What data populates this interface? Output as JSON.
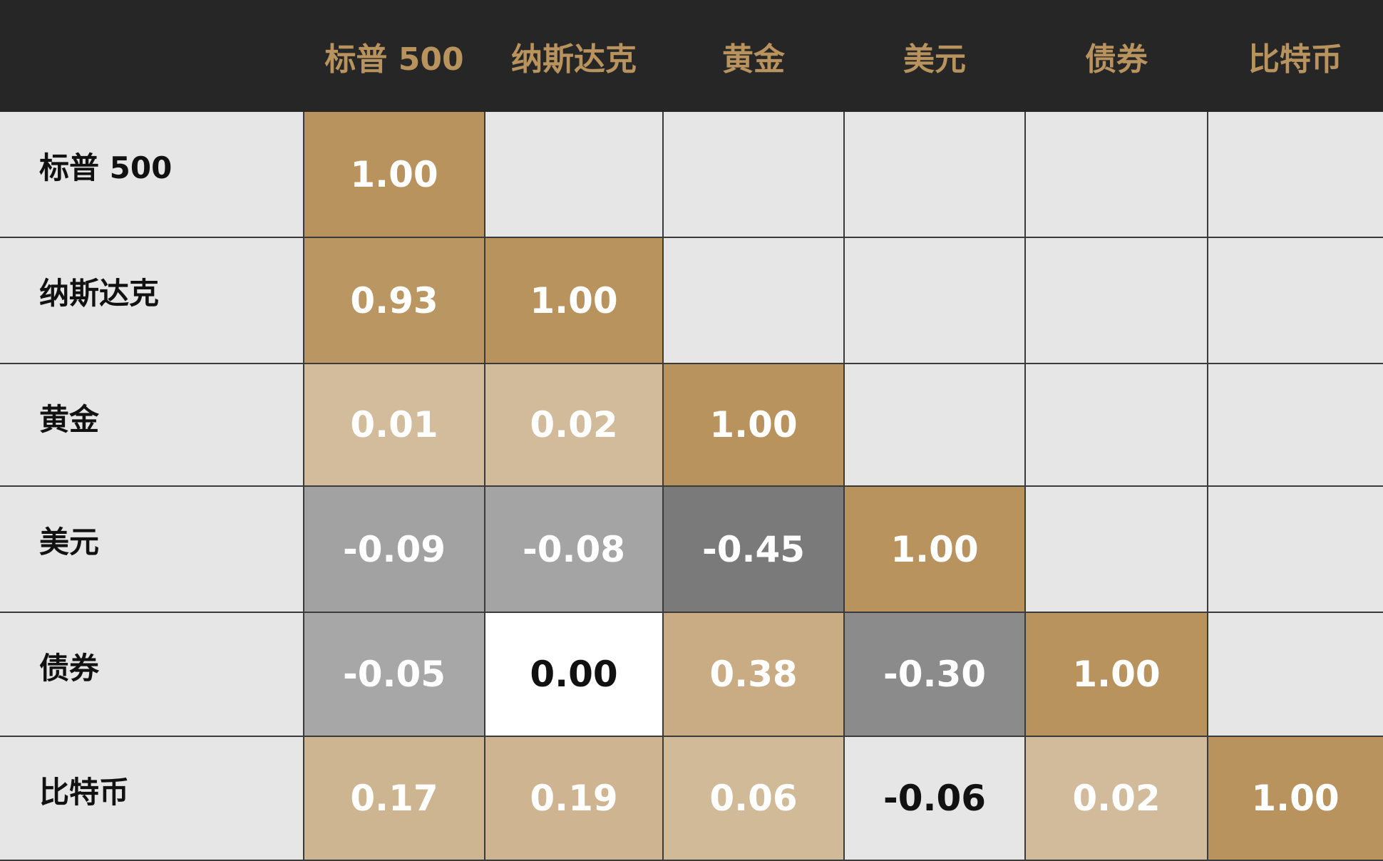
{
  "chart_data": {
    "type": "heatmap",
    "variables": [
      "标普 500",
      "纳斯达克",
      "黄金",
      "美元",
      "债券",
      "比特币"
    ],
    "matrix": [
      [
        "1.00",
        null,
        null,
        null,
        null,
        null
      ],
      [
        "0.93",
        "1.00",
        null,
        null,
        null,
        null
      ],
      [
        "0.01",
        "0.02",
        "1.00",
        null,
        null,
        null
      ],
      [
        "-0.09",
        "-0.08",
        "-0.45",
        "1.00",
        null,
        null
      ],
      [
        "-0.05",
        "0.00",
        "0.38",
        "-0.30",
        "1.00",
        null
      ],
      [
        "0.17",
        "0.19",
        "0.06",
        "-0.06",
        "0.02",
        "1.00"
      ]
    ],
    "lower_triangle_only": true,
    "colors": {
      "header_bg": "#262626",
      "header_text": "#b8935e",
      "background": "#e6e6e6",
      "positive_max": "#b8935e",
      "zero": "#ffffff",
      "negative_max": "#7a7a7a",
      "grid": "#3a3a3a"
    }
  }
}
